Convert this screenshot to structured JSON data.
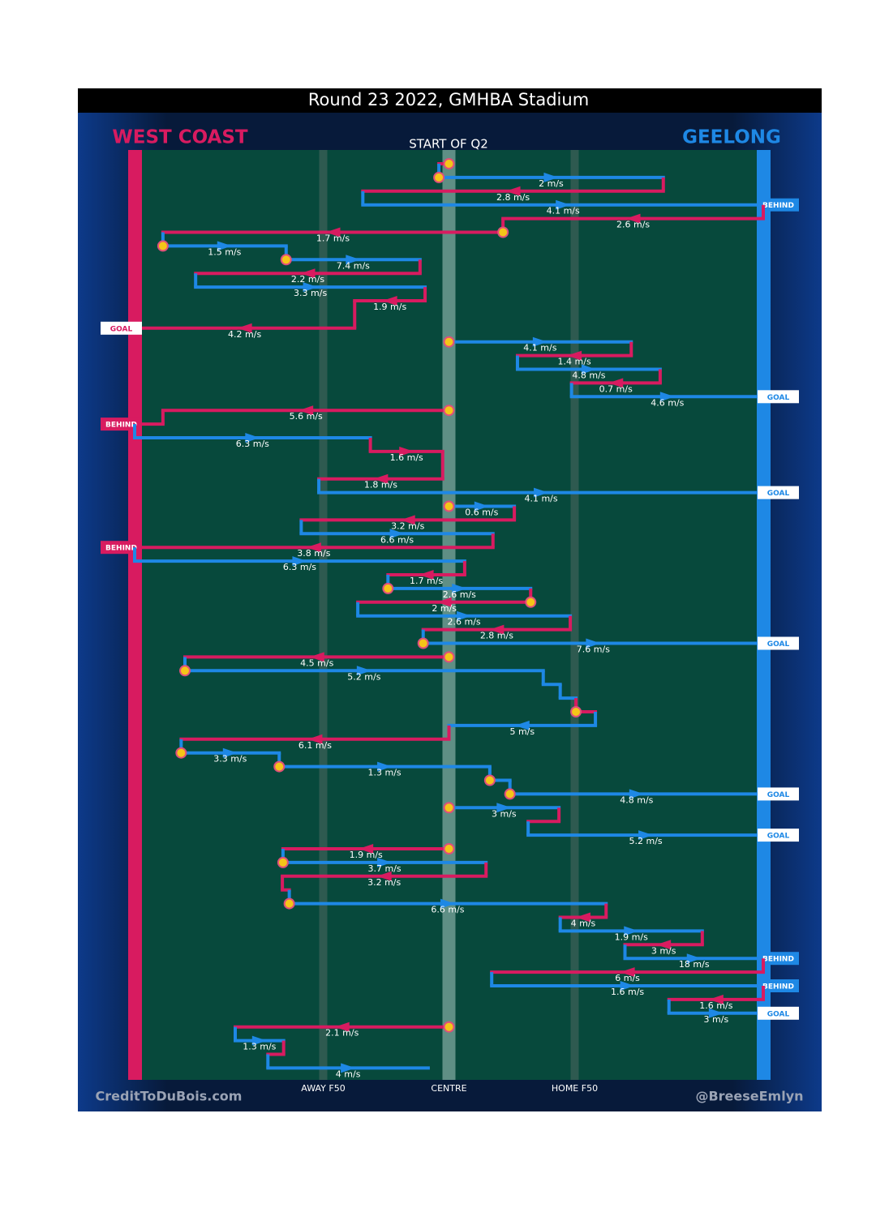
{
  "chart_data": {
    "type": "chain",
    "title": "Round 23 2022, GMHBA Stadium",
    "subtitle": "START OF Q2",
    "teams": [
      {
        "name": "WEST COAST",
        "color": "#d81b60"
      },
      {
        "name": "GEELONG",
        "color": "#1e88e5"
      }
    ],
    "xlim": [
      0,
      100
    ],
    "zones": [
      {
        "label": "AWAY F50",
        "position": 30
      },
      {
        "label": "CENTRE",
        "position": 50
      },
      {
        "label": "HOME F50",
        "position": 70
      }
    ],
    "credits": [
      "CreditToDuBois.com",
      "@BreeseEmlyn"
    ],
    "segments": [
      {
        "team": 0,
        "from": 50,
        "to": 48.4,
        "marked": true
      },
      {
        "team": 1,
        "from": 48.4,
        "to": 84.1,
        "speed": "2 m/s",
        "marked": true
      },
      {
        "team": 0,
        "from": 84.1,
        "to": 36.3,
        "speed": "2.8 m/s"
      },
      {
        "team": 1,
        "from": 36.3,
        "to": 100,
        "speed": "4.1 m/s",
        "outcome": "BEHIND"
      },
      {
        "team": 0,
        "from": 100,
        "to": 58.6,
        "speed": "2.6 m/s"
      },
      {
        "team": 0,
        "from": 58.6,
        "to": 4.5,
        "speed": "1.7 m/s",
        "marked": true
      },
      {
        "team": 1,
        "from": 4.5,
        "to": 24.1,
        "speed": "1.5 m/s",
        "marked": true
      },
      {
        "team": 1,
        "from": 24.1,
        "to": 45.4,
        "speed": "7.4 m/s",
        "marked": true
      },
      {
        "team": 0,
        "from": 45.4,
        "to": 9.7,
        "speed": "2.2 m/s"
      },
      {
        "team": 1,
        "from": 9.7,
        "to": 46.2,
        "speed": "3.3 m/s"
      },
      {
        "team": 0,
        "from": 46.2,
        "to": 35,
        "speed": "1.9 m/s"
      },
      {
        "team": 0,
        "from": 35,
        "to": 0,
        "speed": "4.2 m/s",
        "outcome": "GOAL"
      },
      {
        "team": 1,
        "from": 50,
        "to": 79,
        "speed": "4.1 m/s",
        "marked": true
      },
      {
        "team": 0,
        "from": 79,
        "to": 60.9,
        "speed": "1.4 m/s"
      },
      {
        "team": 1,
        "from": 60.9,
        "to": 83.6,
        "speed": "4.8 m/s"
      },
      {
        "team": 0,
        "from": 83.6,
        "to": 69.5,
        "speed": "0.7 m/s"
      },
      {
        "team": 1,
        "from": 69.5,
        "to": 100,
        "speed": "4.6 m/s",
        "outcome": "GOAL"
      },
      {
        "team": 0,
        "from": 50,
        "to": 4.5,
        "speed": "5.6 m/s",
        "marked": true
      },
      {
        "team": 0,
        "from": 4.5,
        "to": 0,
        "outcome": "BEHIND"
      },
      {
        "team": 1,
        "from": 0,
        "to": 37.5,
        "speed": "6.3 m/s"
      },
      {
        "team": 0,
        "from": 37.5,
        "to": 49,
        "speed": "1.6 m/s"
      },
      {
        "team": 0,
        "from": 49,
        "to": 29.3,
        "speed": "1.8 m/s"
      },
      {
        "team": 1,
        "from": 29.3,
        "to": 100,
        "speed": "4.1 m/s",
        "outcome": "GOAL"
      },
      {
        "team": 1,
        "from": 50,
        "to": 60.4,
        "speed": "0.6 m/s",
        "marked": true
      },
      {
        "team": 0,
        "from": 60.4,
        "to": 26.5,
        "speed": "3.2 m/s"
      },
      {
        "team": 1,
        "from": 26.5,
        "to": 57,
        "speed": "6.6 m/s"
      },
      {
        "team": 0,
        "from": 57,
        "to": 0,
        "speed": "3.8 m/s",
        "outcome": "BEHIND"
      },
      {
        "team": 1,
        "from": 0,
        "to": 52.5,
        "speed": "6.3 m/s"
      },
      {
        "team": 0,
        "from": 52.5,
        "to": 40.3,
        "speed": "1.7 m/s"
      },
      {
        "team": 1,
        "from": 40.3,
        "to": 63,
        "speed": "2.6 m/s",
        "marked": true
      },
      {
        "team": 0,
        "from": 63,
        "to": 35.5,
        "speed": "2 m/s",
        "marked": true
      },
      {
        "team": 1,
        "from": 35.5,
        "to": 69.3,
        "speed": "2.6 m/s"
      },
      {
        "team": 0,
        "from": 69.3,
        "to": 45.9,
        "speed": "2.8 m/s"
      },
      {
        "team": 1,
        "from": 45.9,
        "to": 100,
        "speed": "7.6 m/s",
        "outcome": "GOAL",
        "marked": true
      },
      {
        "team": 0,
        "from": 50,
        "to": 8,
        "speed": "4.5 m/s",
        "marked": true
      },
      {
        "team": 1,
        "from": 8,
        "to": 65,
        "speed": "5.2 m/s",
        "marked": true
      },
      {
        "team": 1,
        "from": 65,
        "to": 67.7
      },
      {
        "team": 1,
        "from": 67.7,
        "to": 70.2
      },
      {
        "team": 0,
        "from": 70.2,
        "to": 73.3,
        "marked": true
      },
      {
        "team": 1,
        "from": 73.3,
        "to": 50,
        "speed": "5 m/s"
      },
      {
        "team": 0,
        "from": 50,
        "to": 7.4,
        "speed": "6.1 m/s"
      },
      {
        "team": 1,
        "from": 7.4,
        "to": 23,
        "speed": "3.3 m/s",
        "marked": true
      },
      {
        "team": 1,
        "from": 23,
        "to": 56.5,
        "speed": "1.3 m/s",
        "marked": true
      },
      {
        "team": 1,
        "from": 56.5,
        "to": 59.7,
        "marked": true
      },
      {
        "team": 1,
        "from": 59.7,
        "to": 100,
        "speed": "4.8 m/s",
        "outcome": "GOAL",
        "marked": true
      },
      {
        "team": 1,
        "from": 50,
        "to": 67.5,
        "speed": "3 m/s",
        "marked": true
      },
      {
        "team": 0,
        "from": 67.5,
        "to": 62.6
      },
      {
        "team": 1,
        "from": 62.6,
        "to": 100,
        "speed": "5.2 m/s",
        "outcome": "GOAL"
      },
      {
        "team": 0,
        "from": 50,
        "to": 23.6,
        "speed": "1.9 m/s",
        "marked": true
      },
      {
        "team": 1,
        "from": 23.6,
        "to": 55.9,
        "speed": "3.7 m/s",
        "marked": true
      },
      {
        "team": 0,
        "from": 55.9,
        "to": 23.5,
        "speed": "3.2 m/s"
      },
      {
        "team": 0,
        "from": 23.5,
        "to": 24.6
      },
      {
        "team": 1,
        "from": 24.6,
        "to": 75,
        "speed": "6.6 m/s",
        "marked": true
      },
      {
        "team": 0,
        "from": 75,
        "to": 67.7,
        "speed": "4 m/s"
      },
      {
        "team": 1,
        "from": 67.7,
        "to": 90.3,
        "speed": "1.9 m/s"
      },
      {
        "team": 0,
        "from": 90.3,
        "to": 78,
        "speed": "3 m/s"
      },
      {
        "team": 1,
        "from": 78,
        "to": 100,
        "speed": "18 m/s",
        "outcome": "BEHIND"
      },
      {
        "team": 0,
        "from": 100,
        "to": 56.8,
        "speed": "6 m/s"
      },
      {
        "team": 1,
        "from": 56.8,
        "to": 100,
        "speed": "1.6 m/s",
        "outcome": "BEHIND"
      },
      {
        "team": 0,
        "from": 100,
        "to": 85,
        "speed": "1.6 m/s"
      },
      {
        "team": 1,
        "from": 85,
        "to": 100,
        "speed": "3 m/s",
        "outcome": "GOAL"
      },
      {
        "team": 0,
        "from": 50,
        "to": 16,
        "speed": "2.1 m/s",
        "marked": true
      },
      {
        "team": 1,
        "from": 16,
        "to": 23.7,
        "speed": "1.3 m/s"
      },
      {
        "team": 0,
        "from": 23.7,
        "to": 21.2
      },
      {
        "team": 1,
        "from": 21.2,
        "to": 46.7,
        "speed": "4 m/s"
      }
    ]
  }
}
